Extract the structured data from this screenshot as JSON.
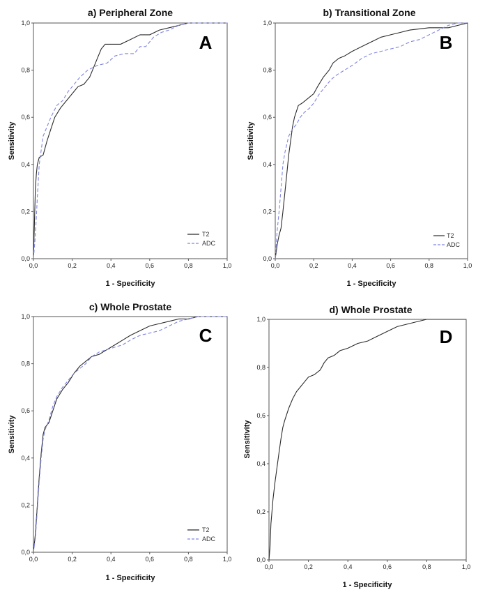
{
  "chart_data": [
    {
      "type": "line",
      "title": "a) Peripheral Zone",
      "panel_letter": "A",
      "xlabel": "1 - Specificity",
      "ylabel": "Sensitivity",
      "xlim": [
        0,
        1
      ],
      "ylim": [
        0,
        1
      ],
      "ticks": [
        "0,0",
        "0,2",
        "0,4",
        "0,6",
        "0,8",
        "1,0"
      ],
      "series": [
        {
          "name": "T2",
          "style": "solid",
          "color": "#2b2b2b",
          "x": [
            0,
            0.005,
            0.01,
            0.015,
            0.02,
            0.03,
            0.05,
            0.07,
            0.09,
            0.11,
            0.14,
            0.17,
            0.2,
            0.23,
            0.26,
            0.29,
            0.31,
            0.33,
            0.35,
            0.37,
            0.4,
            0.45,
            0.5,
            0.55,
            0.6,
            0.65,
            0.7,
            0.75,
            0.8,
            1
          ],
          "y": [
            0,
            0.15,
            0.3,
            0.36,
            0.4,
            0.43,
            0.44,
            0.5,
            0.55,
            0.6,
            0.64,
            0.67,
            0.7,
            0.73,
            0.74,
            0.77,
            0.81,
            0.85,
            0.89,
            0.91,
            0.91,
            0.91,
            0.93,
            0.95,
            0.95,
            0.97,
            0.98,
            0.99,
            1,
            1
          ]
        },
        {
          "name": "ADC",
          "style": "dashed",
          "color": "#7f85e0",
          "x": [
            0,
            0.01,
            0.02,
            0.03,
            0.05,
            0.07,
            0.09,
            0.12,
            0.15,
            0.18,
            0.2,
            0.24,
            0.28,
            0.33,
            0.38,
            0.42,
            0.47,
            0.52,
            0.55,
            0.58,
            0.62,
            0.66,
            0.7,
            0.75,
            0.8,
            1
          ],
          "y": [
            0,
            0.1,
            0.26,
            0.4,
            0.52,
            0.56,
            0.6,
            0.65,
            0.67,
            0.71,
            0.73,
            0.77,
            0.8,
            0.82,
            0.83,
            0.86,
            0.87,
            0.87,
            0.9,
            0.9,
            0.94,
            0.96,
            0.97,
            0.99,
            1,
            1
          ]
        }
      ]
    },
    {
      "type": "line",
      "title": "b) Transitional Zone",
      "panel_letter": "B",
      "xlabel": "1 - Specificity",
      "ylabel": "Sensitivity",
      "xlim": [
        0,
        1
      ],
      "ylim": [
        0,
        1
      ],
      "ticks": [
        "0,0",
        "0,2",
        "0,4",
        "0,6",
        "0,8",
        "1,0"
      ],
      "series": [
        {
          "name": "T2",
          "style": "solid",
          "color": "#2b2b2b",
          "x": [
            0,
            0.01,
            0.02,
            0.03,
            0.04,
            0.05,
            0.06,
            0.07,
            0.08,
            0.09,
            0.1,
            0.12,
            0.14,
            0.17,
            0.2,
            0.22,
            0.25,
            0.28,
            0.3,
            0.33,
            0.36,
            0.4,
            0.45,
            0.5,
            0.55,
            0.6,
            0.65,
            0.7,
            0.8,
            0.9,
            0.95,
            1
          ],
          "y": [
            0,
            0.06,
            0.1,
            0.13,
            0.2,
            0.28,
            0.36,
            0.44,
            0.5,
            0.56,
            0.6,
            0.65,
            0.66,
            0.68,
            0.7,
            0.73,
            0.77,
            0.8,
            0.83,
            0.85,
            0.86,
            0.88,
            0.9,
            0.92,
            0.94,
            0.95,
            0.96,
            0.97,
            0.98,
            0.98,
            0.99,
            1
          ]
        },
        {
          "name": "ADC",
          "style": "dashed",
          "color": "#7f85e0",
          "x": [
            0,
            0.01,
            0.02,
            0.03,
            0.04,
            0.05,
            0.07,
            0.09,
            0.11,
            0.13,
            0.15,
            0.18,
            0.2,
            0.23,
            0.26,
            0.29,
            0.32,
            0.36,
            0.4,
            0.45,
            0.5,
            0.55,
            0.6,
            0.65,
            0.7,
            0.75,
            0.8,
            0.85,
            0.9,
            0.95,
            1
          ],
          "y": [
            0,
            0.12,
            0.2,
            0.3,
            0.4,
            0.45,
            0.52,
            0.55,
            0.57,
            0.6,
            0.62,
            0.64,
            0.66,
            0.7,
            0.73,
            0.76,
            0.78,
            0.8,
            0.82,
            0.85,
            0.87,
            0.88,
            0.89,
            0.9,
            0.92,
            0.93,
            0.95,
            0.97,
            0.99,
            1,
            1
          ]
        }
      ]
    },
    {
      "type": "line",
      "title": "c) Whole Prostate",
      "panel_letter": "C",
      "xlabel": "1 - Specificity",
      "ylabel": "Sensitivity",
      "xlim": [
        0,
        1
      ],
      "ylim": [
        0,
        1
      ],
      "ticks": [
        "0,0",
        "0,2",
        "0,4",
        "0,6",
        "0,8",
        "1,0"
      ],
      "series": [
        {
          "name": "T2",
          "style": "solid",
          "color": "#2b2b2b",
          "x": [
            0,
            0.01,
            0.02,
            0.03,
            0.04,
            0.05,
            0.06,
            0.07,
            0.08,
            0.1,
            0.12,
            0.15,
            0.18,
            0.21,
            0.24,
            0.27,
            0.3,
            0.34,
            0.38,
            0.42,
            0.46,
            0.5,
            0.55,
            0.6,
            0.65,
            0.7,
            0.75,
            0.8,
            0.85,
            0.9,
            1
          ],
          "y": [
            0,
            0.08,
            0.2,
            0.32,
            0.42,
            0.5,
            0.53,
            0.54,
            0.55,
            0.6,
            0.65,
            0.69,
            0.72,
            0.76,
            0.79,
            0.81,
            0.83,
            0.84,
            0.86,
            0.88,
            0.9,
            0.92,
            0.94,
            0.96,
            0.97,
            0.98,
            0.99,
            0.99,
            1,
            1,
            1
          ]
        },
        {
          "name": "ADC",
          "style": "dashed",
          "color": "#7f85e0",
          "x": [
            0,
            0.01,
            0.02,
            0.03,
            0.04,
            0.05,
            0.06,
            0.07,
            0.08,
            0.1,
            0.12,
            0.15,
            0.18,
            0.21,
            0.24,
            0.27,
            0.3,
            0.34,
            0.38,
            0.42,
            0.46,
            0.5,
            0.55,
            0.6,
            0.65,
            0.7,
            0.75,
            0.8,
            0.85,
            0.9,
            1
          ],
          "y": [
            0,
            0.06,
            0.18,
            0.3,
            0.4,
            0.48,
            0.52,
            0.54,
            0.56,
            0.62,
            0.66,
            0.7,
            0.73,
            0.76,
            0.78,
            0.8,
            0.83,
            0.85,
            0.86,
            0.87,
            0.88,
            0.9,
            0.92,
            0.93,
            0.94,
            0.96,
            0.98,
            0.99,
            1,
            1,
            1
          ]
        }
      ]
    },
    {
      "type": "line",
      "title": "d) Whole Prostate",
      "panel_letter": "D",
      "xlabel": "1 - Specificity",
      "ylabel": "Sensitivity",
      "xlim": [
        0,
        1
      ],
      "ylim": [
        0,
        1
      ],
      "ticks": [
        "0,0",
        "0,2",
        "0,4",
        "0,6",
        "0,8",
        "1,0"
      ],
      "series": [
        {
          "name": "",
          "style": "solid",
          "color": "#2b2b2b",
          "x": [
            0,
            0.005,
            0.01,
            0.02,
            0.03,
            0.04,
            0.05,
            0.06,
            0.07,
            0.08,
            0.1,
            0.12,
            0.14,
            0.16,
            0.18,
            0.2,
            0.23,
            0.26,
            0.28,
            0.3,
            0.33,
            0.36,
            0.4,
            0.45,
            0.5,
            0.55,
            0.6,
            0.65,
            0.7,
            0.75,
            0.8,
            0.85,
            0.9,
            1
          ],
          "y": [
            0,
            0.05,
            0.15,
            0.25,
            0.32,
            0.38,
            0.44,
            0.5,
            0.55,
            0.58,
            0.63,
            0.67,
            0.7,
            0.72,
            0.74,
            0.76,
            0.77,
            0.79,
            0.82,
            0.84,
            0.85,
            0.87,
            0.88,
            0.9,
            0.91,
            0.93,
            0.95,
            0.97,
            0.98,
            0.99,
            1,
            1,
            1,
            1
          ]
        }
      ]
    }
  ]
}
